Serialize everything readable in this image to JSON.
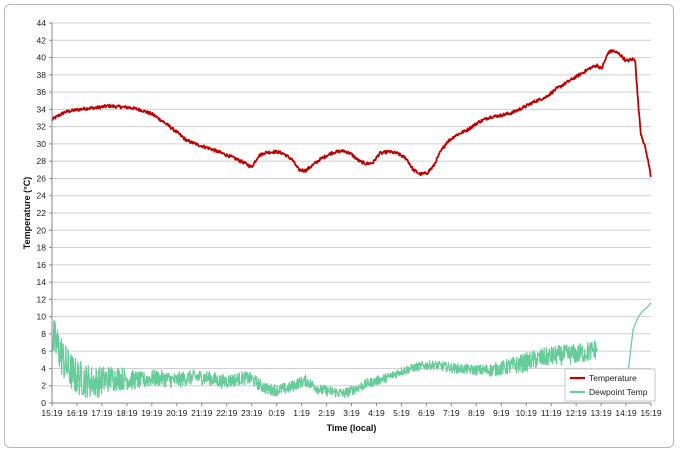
{
  "chart_data": {
    "type": "line",
    "title": "",
    "xlabel": "Time (local)",
    "ylabel": "Temperature (°C)",
    "ylim": [
      0,
      44
    ],
    "y_tick_step": 2,
    "grid": "horizontal",
    "legend_position": "bottom-right",
    "x_ticks": [
      "15:19",
      "16:19",
      "17:19",
      "18:19",
      "19:19",
      "20:19",
      "21:19",
      "22:19",
      "23:19",
      "0:19",
      "1:19",
      "2:19",
      "3:19",
      "4:19",
      "5:19",
      "6:19",
      "7:19",
      "8:19",
      "9:19",
      "10:19",
      "11:19",
      "12:19",
      "13:19",
      "14:19",
      "15:19"
    ],
    "series": [
      {
        "name": "Temperature",
        "color": "#c00000",
        "values": [
          [
            0,
            32.8
          ],
          [
            0.3,
            33.3
          ],
          [
            0.6,
            33.7
          ],
          [
            1.0,
            33.9
          ],
          [
            1.5,
            34.1
          ],
          [
            2.0,
            34.2
          ],
          [
            2.5,
            34.4
          ],
          [
            3.0,
            34.3
          ],
          [
            3.5,
            34.2
          ],
          [
            4.0,
            33.9
          ],
          [
            4.5,
            33.4
          ],
          [
            5.0,
            32.5
          ],
          [
            5.5,
            31.5
          ],
          [
            6.0,
            30.4
          ],
          [
            6.5,
            29.9
          ],
          [
            7.0,
            29.5
          ],
          [
            7.5,
            29.0
          ],
          [
            8.0,
            28.5
          ],
          [
            8.5,
            27.9
          ],
          [
            8.9,
            27.3
          ],
          [
            9.2,
            28.6
          ],
          [
            9.5,
            29.0
          ],
          [
            10.0,
            29.1
          ],
          [
            10.3,
            28.9
          ],
          [
            10.7,
            28.2
          ],
          [
            11.0,
            27.0
          ],
          [
            11.3,
            26.9
          ],
          [
            11.6,
            27.5
          ],
          [
            12.0,
            28.3
          ],
          [
            12.5,
            29.0
          ],
          [
            13.0,
            29.2
          ],
          [
            13.3,
            28.9
          ],
          [
            13.7,
            28.0
          ],
          [
            14.0,
            27.7
          ],
          [
            14.3,
            27.8
          ],
          [
            14.6,
            28.9
          ],
          [
            15.0,
            29.1
          ],
          [
            15.4,
            28.9
          ],
          [
            15.8,
            28.3
          ],
          [
            16.1,
            27.0
          ],
          [
            16.4,
            26.5
          ],
          [
            16.7,
            26.6
          ],
          [
            17.0,
            27.4
          ],
          [
            17.3,
            29.0
          ],
          [
            17.6,
            30.2
          ],
          [
            18.0,
            31.0
          ],
          [
            18.5,
            31.6
          ],
          [
            19.0,
            32.5
          ],
          [
            19.5,
            33.1
          ],
          [
            20.0,
            33.3
          ],
          [
            20.5,
            33.6
          ],
          [
            21.0,
            34.2
          ],
          [
            21.5,
            34.9
          ],
          [
            22.0,
            35.4
          ],
          [
            22.5,
            36.4
          ],
          [
            23.0,
            37.2
          ],
          [
            23.5,
            38.0
          ],
          [
            24.0,
            38.8
          ],
          [
            24.3,
            39.1
          ],
          [
            24.5,
            38.7
          ],
          [
            24.8,
            40.6
          ],
          [
            25.0,
            40.8
          ],
          [
            25.3,
            40.4
          ],
          [
            25.6,
            39.6
          ],
          [
            25.9,
            39.8
          ],
          [
            26.0,
            39.7
          ],
          [
            26.05,
            37.5
          ],
          [
            26.15,
            34.0
          ],
          [
            26.25,
            31.2
          ],
          [
            26.4,
            30.0
          ],
          [
            26.55,
            28.3
          ],
          [
            26.7,
            26.2
          ]
        ]
      },
      {
        "name": "Dewpoint Temp",
        "color": "#66cc99",
        "values": [
          [
            0,
            7.6
          ],
          [
            0.3,
            6.3
          ],
          [
            0.6,
            4.5
          ],
          [
            1.0,
            3.2
          ],
          [
            1.5,
            2.6
          ],
          [
            2.0,
            2.4
          ],
          [
            2.5,
            2.8
          ],
          [
            3.0,
            2.9
          ],
          [
            3.5,
            2.7
          ],
          [
            4.0,
            2.6
          ],
          [
            4.5,
            2.9
          ],
          [
            5.0,
            2.8
          ],
          [
            5.5,
            2.6
          ],
          [
            6.0,
            2.9
          ],
          [
            6.5,
            3.0
          ],
          [
            7.0,
            2.9
          ],
          [
            7.5,
            2.5
          ],
          [
            8.0,
            2.6
          ],
          [
            8.5,
            2.9
          ],
          [
            8.9,
            2.8
          ],
          [
            9.2,
            2.2
          ],
          [
            9.6,
            1.6
          ],
          [
            10.0,
            1.5
          ],
          [
            10.5,
            1.7
          ],
          [
            11.0,
            2.3
          ],
          [
            11.3,
            2.6
          ],
          [
            11.6,
            2.1
          ],
          [
            12.0,
            1.5
          ],
          [
            12.5,
            1.3
          ],
          [
            13.0,
            1.1
          ],
          [
            13.5,
            1.6
          ],
          [
            14.0,
            2.2
          ],
          [
            14.5,
            2.6
          ],
          [
            15.0,
            3.0
          ],
          [
            15.5,
            3.6
          ],
          [
            16.0,
            4.0
          ],
          [
            16.5,
            4.3
          ],
          [
            17.0,
            4.4
          ],
          [
            17.5,
            4.2
          ],
          [
            18.0,
            4.0
          ],
          [
            18.5,
            3.9
          ],
          [
            19.0,
            3.8
          ],
          [
            19.5,
            3.8
          ],
          [
            20.0,
            4.0
          ],
          [
            20.5,
            4.3
          ],
          [
            21.0,
            4.6
          ],
          [
            21.5,
            5.0
          ],
          [
            22.0,
            5.3
          ],
          [
            22.5,
            5.5
          ],
          [
            23.0,
            5.6
          ],
          [
            23.5,
            5.7
          ],
          [
            24.0,
            6.0
          ],
          [
            24.3,
            6.3
          ],
          null,
          [
            25.7,
            4.0
          ],
          [
            25.9,
            8.5
          ],
          [
            26.1,
            9.8
          ],
          [
            26.3,
            10.6
          ],
          [
            26.5,
            11.0
          ],
          [
            26.7,
            11.6
          ]
        ],
        "noise_amplitude": [
          [
            0,
            2.6
          ],
          [
            2.0,
            1.8
          ],
          [
            4.0,
            1.0
          ],
          [
            8.0,
            0.8
          ],
          [
            9.5,
            0.7
          ],
          [
            13.0,
            0.6
          ],
          [
            16.0,
            0.5
          ],
          [
            19.0,
            0.6
          ],
          [
            21.0,
            1.1
          ],
          [
            24.3,
            1.2
          ]
        ]
      }
    ],
    "x_range": [
      0,
      26.7
    ]
  }
}
